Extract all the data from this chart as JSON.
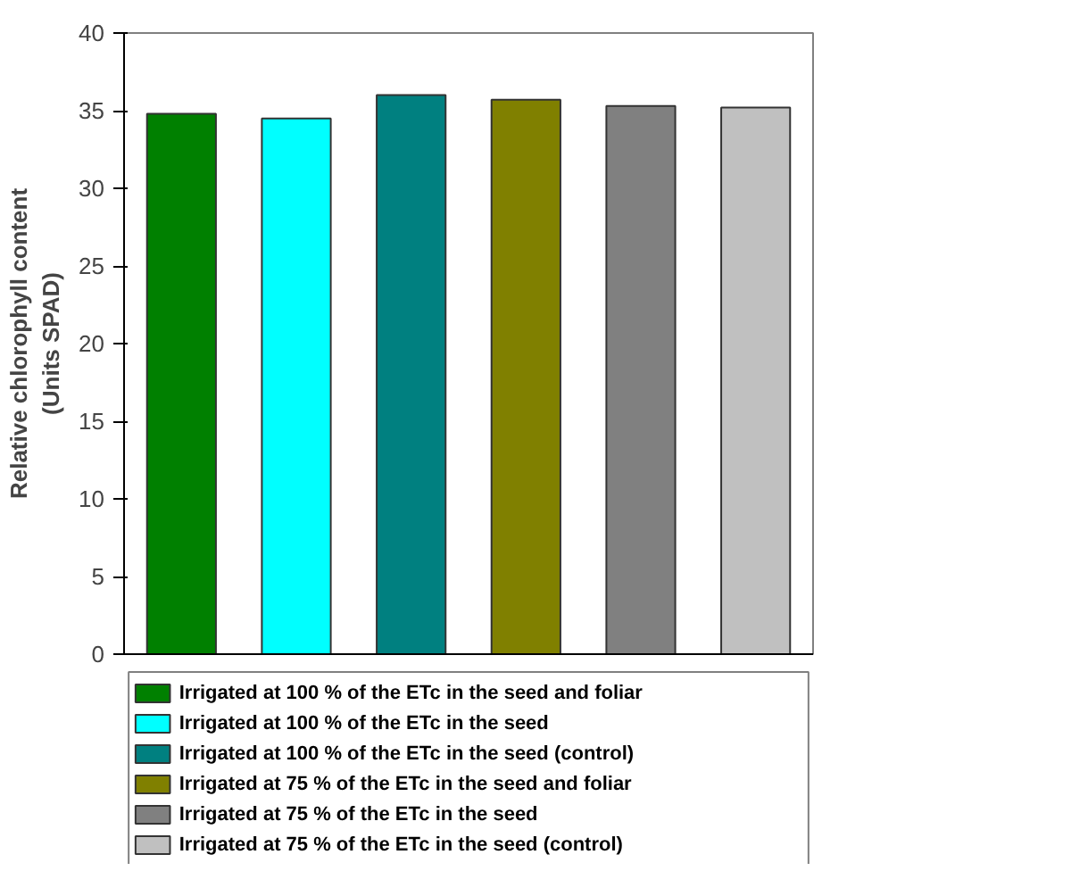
{
  "chart_data": {
    "type": "bar",
    "ylabel": "Relative chlorophyll content\n(Units SPAD)",
    "categories": [
      null,
      null,
      null,
      null,
      null,
      null
    ],
    "series": [
      {
        "name": "Irrigated at 100 % of the ETc in the seed and foliar",
        "color": "#008000",
        "values": [
          34.8,
          null,
          null,
          null,
          null,
          null
        ]
      },
      {
        "name": "Irrigated at 100 % of the ETc in the seed",
        "color": "#00ffff",
        "values": [
          null,
          34.5,
          null,
          null,
          null,
          null
        ]
      },
      {
        "name": "Irrigated at 100 % of the ETc in the seed (control)",
        "color": "#008080",
        "values": [
          null,
          null,
          36.0,
          null,
          null,
          null
        ]
      },
      {
        "name": "Irrigated at 75 % of the ETc in the seed and foliar",
        "color": "#808000",
        "values": [
          null,
          null,
          null,
          35.7,
          null,
          null
        ]
      },
      {
        "name": "Irrigated at 75 % of the ETc in the seed",
        "color": "#808080",
        "values": [
          null,
          null,
          null,
          null,
          35.3,
          null
        ]
      },
      {
        "name": "Irrigated at 75 % of the ETc in the seed (control)",
        "color": "#c0c0c0",
        "values": [
          null,
          null,
          null,
          null,
          null,
          35.2
        ]
      }
    ],
    "ylim": [
      0,
      40
    ],
    "yticks": [
      0,
      5,
      10,
      15,
      20,
      25,
      30,
      35,
      40
    ],
    "legend": "bottom",
    "grid": false,
    "tick_labels": "y"
  }
}
